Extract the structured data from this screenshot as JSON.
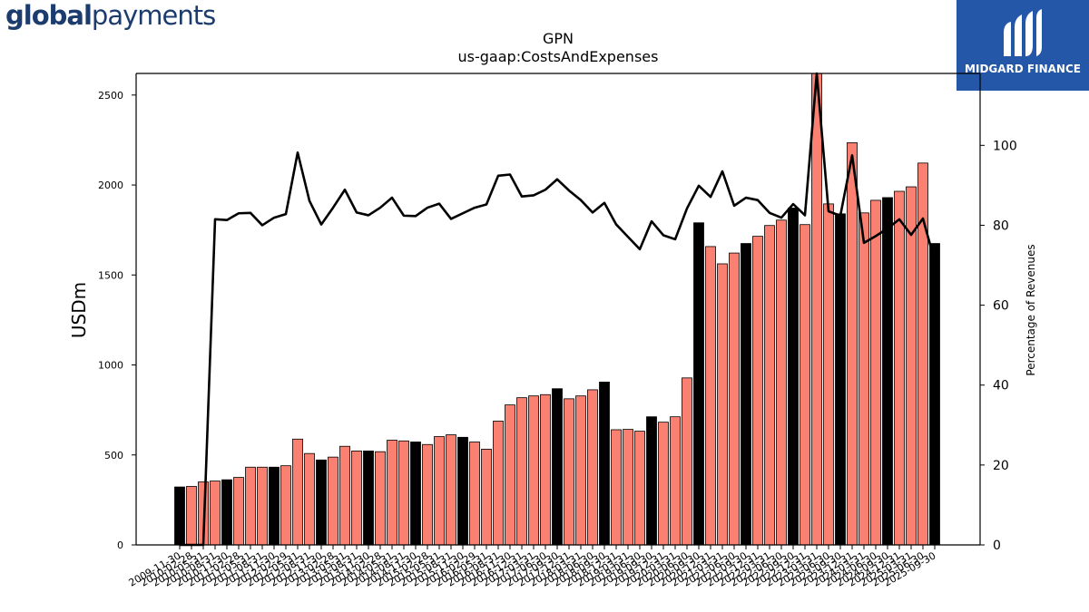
{
  "branding": {
    "left_logo_bold": "global",
    "left_logo_rest": "payments",
    "right_logo_text": "MIDGARD FINANCE",
    "right_logo_bg": "#2457a8"
  },
  "chart_data": {
    "type": "bar",
    "title": "GPN",
    "subtitle": "us-gaap:CostsAndExpenses",
    "ylabel": "USDm",
    "ylabel_right": "Percentage of Revenues",
    "ylim": [
      0,
      2620
    ],
    "ylim_right": [
      0,
      118
    ],
    "yticks": [
      0,
      500,
      1000,
      1500,
      2000,
      2500
    ],
    "yticks_right": [
      0,
      20,
      40,
      60,
      80,
      100
    ],
    "colors": {
      "salmon": "#fa8072",
      "black": "#000000",
      "line": "#000000"
    },
    "categories": [
      "2009-11-30",
      "2010-02-28",
      "2010-05-31",
      "2010-08-31",
      "2010-11-30",
      "2011-02-28",
      "2011-05-31",
      "2011-08-31",
      "2011-11-30",
      "2012-02-29",
      "2012-05-31",
      "2012-08-31",
      "2012-11-30",
      "2013-02-28",
      "2013-05-31",
      "2013-08-31",
      "2013-11-30",
      "2014-02-28",
      "2014-05-31",
      "2014-08-31",
      "2014-11-30",
      "2015-02-28",
      "2015-05-31",
      "2015-08-31",
      "2015-11-30",
      "2016-02-29",
      "2016-05-31",
      "2016-08-31",
      "2016-11-30",
      "2016-12-31",
      "2017-03-31",
      "2017-06-30",
      "2017-09-30",
      "2017-12-31",
      "2018-03-31",
      "2018-06-30",
      "2018-09-30",
      "2018-12-31",
      "2019-03-31",
      "2019-06-30",
      "2019-09-30",
      "2019-12-31",
      "2020-03-31",
      "2020-06-30",
      "2020-09-30",
      "2020-12-31",
      "2021-03-31",
      "2021-06-30",
      "2021-09-30",
      "2021-12-31",
      "2022-03-31",
      "2022-06-30",
      "2022-09-30",
      "2022-12-31",
      "2023-03-31",
      "2023-06-30",
      "2023-09-30",
      "2023-12-31",
      "2024-03-31",
      "2024-06-30",
      "2024-09-30",
      "2024-12-31",
      "2025-03-31",
      "2025-06-30",
      "2025-09-30"
    ],
    "x_tick_labels": [
      "2009-11-30",
      "2010-02-28",
      "2010-05-31",
      "2010-08-31",
      "2010-11-30",
      "2011-02-28",
      "2011-05-31",
      "2011-08-31",
      "2011-11-30",
      "2012-02-29",
      "2012-05-31",
      "2012-08-31",
      "2012-11-30",
      "2013-02-28",
      "2013-05-31",
      "2013-08-31",
      "2013-11-30",
      "2014-02-28",
      "2014-05-31",
      "2014-08-31",
      "2014-11-30",
      "2015-02-28",
      "2015-05-31",
      "2015-08-31",
      "2015-11-30",
      "2016-02-29",
      "2016-05-31",
      "2016-08-31",
      "2016-11-30",
      "2016-12-31",
      "2017-03-31",
      "2017-06-30",
      "2017-09-30",
      "2017-12-31",
      "2018-03-31",
      "2018-06-30",
      "2018-09-30",
      "2018-12-31",
      "2019-03-31",
      "2019-06-30",
      "2019-09-30",
      "2019-12-31",
      "2020-03-31",
      "2020-06-30",
      "2020-09-30",
      "2020-12-31",
      "2021-03-31",
      "2021-06-30",
      "2021-09-30",
      "2021-12-31",
      "2022-03-31",
      "2022-06-30",
      "2022-09-30",
      "2022-12-31",
      "2023-03-31",
      "2023-06-30",
      "2023-09-30",
      "2023-12-31",
      "2024-03-31",
      "2024-06-30",
      "2024-09-30",
      "2024-12-31",
      "2025-03-31",
      "2025-06-30",
      "2025-09-30"
    ],
    "series": [
      {
        "type": "bar",
        "values": [
          322,
          325,
          350,
          355,
          362,
          375,
          432,
          432,
          432,
          440,
          588,
          508,
          472,
          488,
          548,
          522,
          522,
          518,
          582,
          578,
          572,
          558,
          602,
          612,
          598,
          572,
          532,
          688,
          778,
          818,
          828,
          835,
          868,
          812,
          828,
          862,
          905,
          640,
          642,
          632,
          712,
          682,
          712,
          928,
          1790,
          1658,
          1562,
          1622,
          1675,
          1715,
          1775,
          1805,
          1872,
          1780,
          2620,
          1895,
          1840,
          2235,
          1845,
          1915,
          1930,
          1965,
          1990,
          2122,
          1675
        ],
        "colors": [
          "black",
          "salmon",
          "salmon",
          "salmon",
          "black",
          "salmon",
          "salmon",
          "salmon",
          "black",
          "salmon",
          "salmon",
          "salmon",
          "black",
          "salmon",
          "salmon",
          "salmon",
          "black",
          "salmon",
          "salmon",
          "salmon",
          "black",
          "salmon",
          "salmon",
          "salmon",
          "black",
          "salmon",
          "salmon",
          "salmon",
          "salmon",
          "salmon",
          "salmon",
          "salmon",
          "black",
          "salmon",
          "salmon",
          "salmon",
          "black",
          "salmon",
          "salmon",
          "salmon",
          "black",
          "salmon",
          "salmon",
          "salmon",
          "black",
          "salmon",
          "salmon",
          "salmon",
          "black",
          "salmon",
          "salmon",
          "salmon",
          "black",
          "salmon",
          "salmon",
          "salmon",
          "black",
          "salmon",
          "salmon",
          "salmon",
          "black",
          "salmon",
          "salmon",
          "salmon",
          "black"
        ]
      },
      {
        "type": "line",
        "axis": "right",
        "values": [
          0,
          0,
          0,
          81.5,
          81.3,
          83,
          83.1,
          80,
          81.9,
          82.8,
          98.2,
          86.1,
          80.2,
          84.4,
          88.9,
          83.2,
          82.5,
          84.4,
          86.9,
          82.4,
          82.3,
          84.4,
          85.4,
          81.6,
          83,
          84.4,
          85.2,
          92.4,
          92.7,
          87.2,
          87.5,
          88.9,
          91.5,
          88.7,
          86.3,
          83.2,
          85.6,
          80.2,
          77.1,
          74,
          81,
          77.5,
          76.5,
          84.2,
          89.9,
          87.1,
          93.5,
          84.9,
          86.9,
          86.3,
          83.1,
          81.9,
          85.3,
          82.5,
          118,
          83.5,
          82.4,
          97.5,
          75.6,
          77.3,
          79.2,
          81.5,
          77.6,
          81.7,
          71
        ]
      }
    ]
  }
}
